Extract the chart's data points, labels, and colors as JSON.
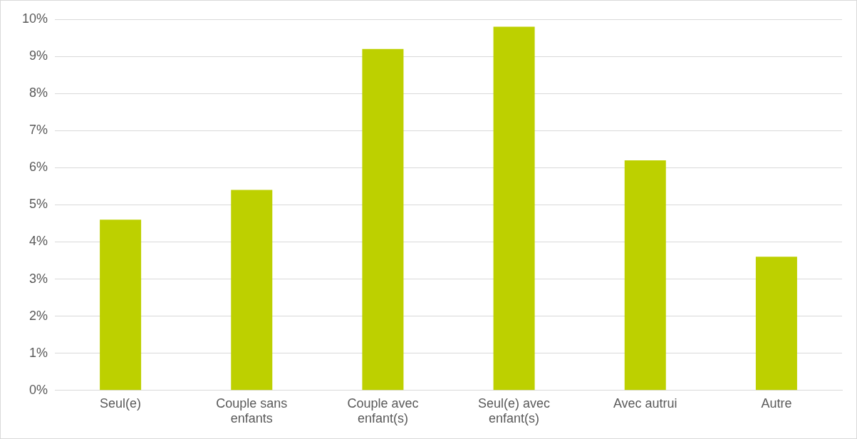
{
  "chart_data": {
    "type": "bar",
    "categories": [
      "Seul(e)",
      "Couple sans enfants",
      "Couple avec enfant(s)",
      "Seul(e) avec enfant(s)",
      "Avec autrui",
      "Autre"
    ],
    "values": [
      4.6,
      5.4,
      9.2,
      9.8,
      6.2,
      3.6
    ],
    "color": "#bdd000",
    "ylim": [
      0,
      10
    ],
    "yticks": [
      {
        "value": 0,
        "label": "0%"
      },
      {
        "value": 1,
        "label": "1%"
      },
      {
        "value": 2,
        "label": "2%"
      },
      {
        "value": 3,
        "label": "3%"
      },
      {
        "value": 4,
        "label": "4%"
      },
      {
        "value": 5,
        "label": "5%"
      },
      {
        "value": 6,
        "label": "6%"
      },
      {
        "value": 7,
        "label": "7%"
      },
      {
        "value": 8,
        "label": "8%"
      },
      {
        "value": 9,
        "label": "9%"
      },
      {
        "value": 10,
        "label": "10%"
      }
    ],
    "grid": "y",
    "legend": false
  }
}
